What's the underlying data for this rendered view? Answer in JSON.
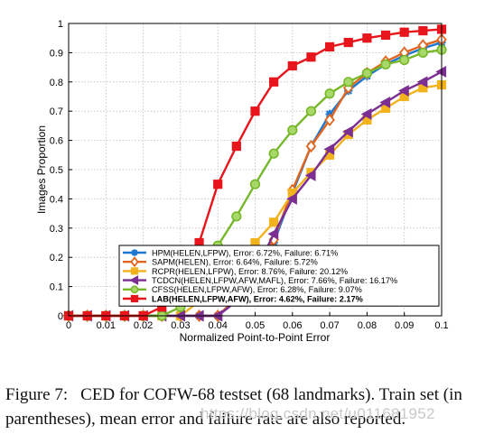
{
  "chart_data": {
    "type": "line",
    "title": "",
    "xlabel": "Normalized Point-to-Point Error",
    "ylabel": "Images Proportion",
    "xlim": [
      0,
      0.1
    ],
    "ylim": [
      0,
      1
    ],
    "xticks": [
      "0",
      "0.01",
      "0.02",
      "0.03",
      "0.04",
      "0.05",
      "0.06",
      "0.07",
      "0.08",
      "0.09",
      "0.1"
    ],
    "yticks": [
      "0",
      "0.1",
      "0.2",
      "0.3",
      "0.4",
      "0.5",
      "0.6",
      "0.7",
      "0.8",
      "0.9",
      "1"
    ],
    "grid": true,
    "legend_position": "bottom-left",
    "series": [
      {
        "name": "HPM(HELEN,LFPW), Error: 6.72%, Failure: 6.71%",
        "color": "#1f77d0",
        "marker": "star",
        "x": [
          0,
          0.005,
          0.01,
          0.015,
          0.02,
          0.025,
          0.03,
          0.035,
          0.04,
          0.045,
          0.05,
          0.055,
          0.06,
          0.065,
          0.07,
          0.075,
          0.08,
          0.085,
          0.09,
          0.095,
          0.1
        ],
        "y": [
          0,
          0,
          0,
          0,
          0,
          0,
          0,
          0,
          0,
          0.06,
          0.15,
          0.25,
          0.42,
          0.58,
          0.69,
          0.77,
          0.82,
          0.86,
          0.89,
          0.915,
          0.935
        ]
      },
      {
        "name": "SAPM(HELEN), Error: 6.64%, Failure: 5.72%",
        "color": "#e2651e",
        "marker": "diamond",
        "x": [
          0,
          0.005,
          0.01,
          0.015,
          0.02,
          0.025,
          0.03,
          0.035,
          0.04,
          0.045,
          0.05,
          0.055,
          0.06,
          0.065,
          0.07,
          0.075,
          0.08,
          0.085,
          0.09,
          0.095,
          0.1
        ],
        "y": [
          0,
          0,
          0,
          0,
          0,
          0,
          0,
          0,
          0,
          0.06,
          0.15,
          0.26,
          0.43,
          0.58,
          0.67,
          0.78,
          0.83,
          0.87,
          0.9,
          0.925,
          0.945
        ]
      },
      {
        "name": "RCPR(HELEN,LFPW), Error: 8.76%, Failure: 20.12%",
        "color": "#f2b21c",
        "marker": "square",
        "x": [
          0,
          0.005,
          0.01,
          0.015,
          0.02,
          0.025,
          0.03,
          0.035,
          0.04,
          0.045,
          0.05,
          0.055,
          0.06,
          0.065,
          0.07,
          0.075,
          0.08,
          0.085,
          0.09,
          0.095,
          0.1
        ],
        "y": [
          0,
          0,
          0,
          0,
          0,
          0,
          0,
          0.05,
          0.12,
          0.19,
          0.25,
          0.32,
          0.42,
          0.49,
          0.55,
          0.62,
          0.67,
          0.71,
          0.75,
          0.78,
          0.79
        ]
      },
      {
        "name": "TCDCN(HELEN,LFPW,AFW,MAFL), Error: 7.66%, Failure: 16.17%",
        "color": "#7b2f90",
        "marker": "triangle-left",
        "x": [
          0,
          0.005,
          0.01,
          0.015,
          0.02,
          0.025,
          0.03,
          0.035,
          0.04,
          0.045,
          0.05,
          0.055,
          0.06,
          0.065,
          0.07,
          0.075,
          0.08,
          0.085,
          0.09,
          0.095,
          0.1
        ],
        "y": [
          0,
          0,
          0,
          0,
          0,
          0,
          0,
          0,
          0,
          0.05,
          0.15,
          0.28,
          0.4,
          0.48,
          0.57,
          0.63,
          0.69,
          0.73,
          0.77,
          0.8,
          0.835
        ]
      },
      {
        "name": "CFSS(HELEN,LFPW,AFW), Error: 6.28%, Failure: 9.07%",
        "color": "#76b82a",
        "marker": "circle",
        "x": [
          0,
          0.005,
          0.01,
          0.015,
          0.02,
          0.025,
          0.03,
          0.035,
          0.04,
          0.045,
          0.05,
          0.055,
          0.06,
          0.065,
          0.07,
          0.075,
          0.08,
          0.085,
          0.09,
          0.095,
          0.1
        ],
        "y": [
          0,
          0,
          0,
          0,
          0,
          0,
          0.03,
          0.12,
          0.24,
          0.34,
          0.45,
          0.555,
          0.635,
          0.7,
          0.76,
          0.8,
          0.83,
          0.86,
          0.875,
          0.9,
          0.91
        ]
      },
      {
        "name": "LAB(HELEN,LFPW,AFW), Error: 4.62%, Failure: 2.17%",
        "color": "#e8151c",
        "marker": "square",
        "x": [
          0,
          0.005,
          0.01,
          0.015,
          0.02,
          0.025,
          0.03,
          0.035,
          0.04,
          0.045,
          0.05,
          0.055,
          0.06,
          0.065,
          0.07,
          0.075,
          0.08,
          0.085,
          0.09,
          0.095,
          0.1
        ],
        "y": [
          0,
          0,
          0,
          0,
          0,
          0.03,
          0.1,
          0.25,
          0.45,
          0.58,
          0.7,
          0.8,
          0.855,
          0.885,
          0.92,
          0.935,
          0.95,
          0.96,
          0.97,
          0.975,
          0.98
        ]
      }
    ]
  },
  "caption": {
    "number": "Figure 7:",
    "text": "CED for COFW-68 testset (68 landmarks). Train set (in parentheses), mean error and failure rate are also reported."
  },
  "watermark": "https://blog.csdn.net/u011681952"
}
